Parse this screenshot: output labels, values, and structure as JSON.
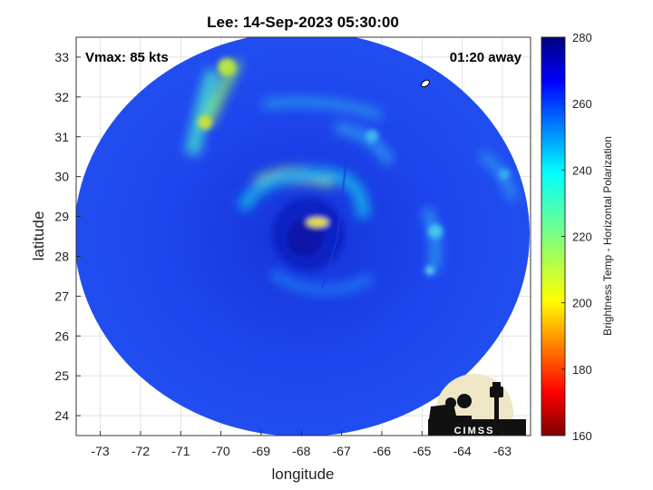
{
  "chart_data": {
    "type": "heatmap",
    "title": "Lee: 14-Sep-2023 05:30:00",
    "annotations": {
      "left": "Vmax: 85 kts",
      "right": "01:20 away"
    },
    "xlabel": "longitude",
    "ylabel": "latitude",
    "xlim": [
      -73.6,
      -62.3
    ],
    "ylim": [
      23.5,
      33.5
    ],
    "x_ticks": [
      -73,
      -72,
      -71,
      -70,
      -69,
      -68,
      -67,
      -66,
      -65,
      -64,
      -63
    ],
    "x_tick_labels": [
      "-73",
      "-72",
      "-71",
      "-70",
      "-69",
      "-68",
      "-67",
      "-66",
      "-65",
      "-64",
      "-63"
    ],
    "y_ticks": [
      24,
      25,
      26,
      27,
      28,
      29,
      30,
      31,
      32,
      33
    ],
    "y_tick_labels": [
      "24",
      "25",
      "26",
      "27",
      "28",
      "29",
      "30",
      "31",
      "32",
      "33"
    ],
    "grid": true,
    "colorbar": {
      "label": "Brightness Temp - Horizontal Polarization",
      "min": 160,
      "max": 280,
      "ticks": [
        160,
        180,
        200,
        220,
        240,
        260,
        280
      ],
      "tick_labels": [
        "160",
        "180",
        "200",
        "220",
        "240",
        "260",
        "280"
      ],
      "colormap": "jet"
    },
    "storm": {
      "name": "Lee",
      "center_lon": -67.8,
      "center_lat": 28.5,
      "swath_radius_deg": 5.6
    },
    "features": [
      {
        "name": "eyewall",
        "lon": -67.7,
        "lat": 28.7,
        "value": 215
      },
      {
        "name": "northern rainband arc",
        "lon": -69.0,
        "lat": 29.8,
        "value": 225
      },
      {
        "name": "northwest outer band",
        "lon": -70.3,
        "lat": 31.3,
        "value": 225
      },
      {
        "name": "eastern rainband",
        "lon": -65.2,
        "lat": 28.2,
        "value": 240
      },
      {
        "name": "background",
        "value": 262
      }
    ]
  },
  "logo": {
    "text": "CIMSS"
  }
}
